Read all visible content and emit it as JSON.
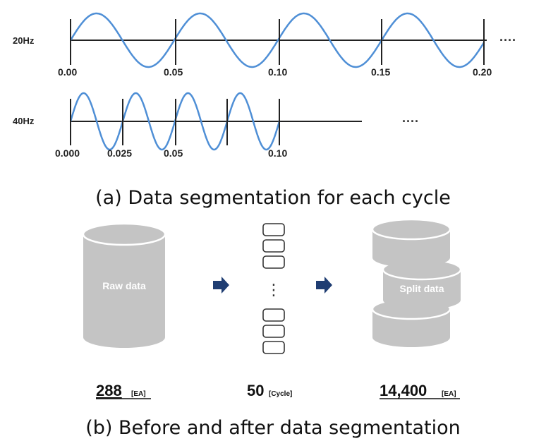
{
  "colors": {
    "wave": "#4f8fd6",
    "axis": "#222222",
    "cylinder": "#c4c4c4",
    "arrow": "#1f3d72"
  },
  "panel_a": {
    "row_20hz": {
      "label": "20Hz",
      "ticks": [
        "0.00",
        "0.05",
        "0.10",
        "0.15",
        "0.20"
      ],
      "ellipsis": "····"
    },
    "row_40hz": {
      "label": "40Hz",
      "ticks": [
        "0.000",
        "0.025",
        "0.05",
        "0.10"
      ],
      "ellipsis": "····"
    },
    "caption": "(a) Data segmentation for each cycle"
  },
  "panel_b": {
    "raw": {
      "label": "Raw data",
      "count": "288",
      "unit": "[EA]"
    },
    "cycles": {
      "count": "50",
      "unit": "[Cycle]",
      "dots": "⋮"
    },
    "split": {
      "label": "Split data",
      "count": "14,400",
      "unit": "[EA]"
    },
    "caption": "(b) Before and after data segmentation"
  }
}
